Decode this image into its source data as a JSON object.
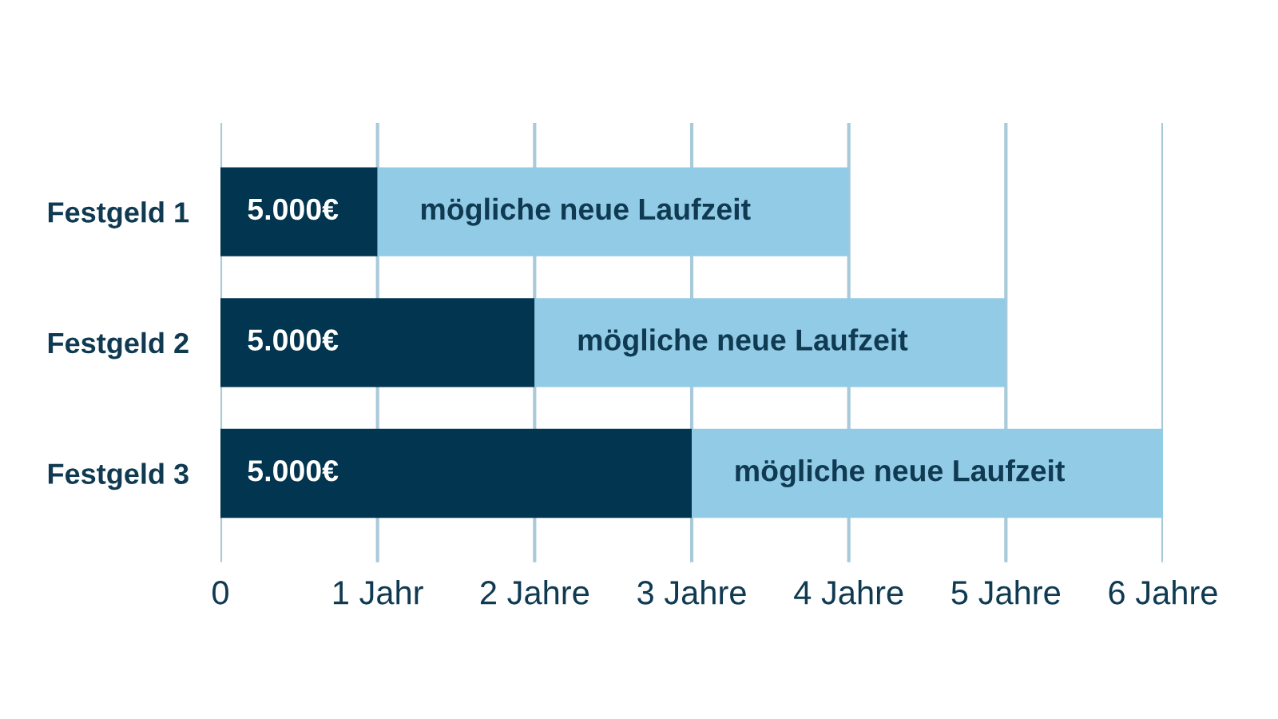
{
  "chart_data": {
    "type": "bar",
    "orientation": "horizontal",
    "stacked": true,
    "categories": [
      "Festgeld 1",
      "Festgeld 2",
      "Festgeld 3"
    ],
    "series": [
      {
        "color": "#023550",
        "values": [
          1,
          2,
          3
        ]
      },
      {
        "color": "#92cbe6",
        "values": [
          3,
          3,
          3
        ]
      }
    ],
    "annotations": [
      {
        "text": "5.000€",
        "x": 0,
        "y": "Festgeld 1"
      },
      {
        "text": "mögliche neue Laufzeit",
        "x": 1,
        "y": "Festgeld 1"
      },
      {
        "text": "5.000€",
        "x": 0,
        "y": "Festgeld 2"
      },
      {
        "text": "mögliche neue Laufzeit",
        "x": 2,
        "y": "Festgeld 2"
      },
      {
        "text": "5.000€",
        "x": 0,
        "y": "Festgeld 3"
      },
      {
        "text": "mögliche neue Laufzeit",
        "x": 3,
        "y": "Festgeld 3"
      }
    ],
    "xlim": [
      0,
      6
    ],
    "xticks": [
      0,
      {
        "value": 1,
        "label": "1 Jahr"
      },
      {
        "value": 2,
        "label": "2 Jahre"
      },
      {
        "value": 3,
        "label": "3 Jahre"
      },
      {
        "value": 4,
        "label": "4 Jahre"
      },
      {
        "value": 5,
        "label": "5 Jahre"
      },
      {
        "value": 6,
        "label": "6 Jahre"
      }
    ],
    "grid": "x"
  }
}
